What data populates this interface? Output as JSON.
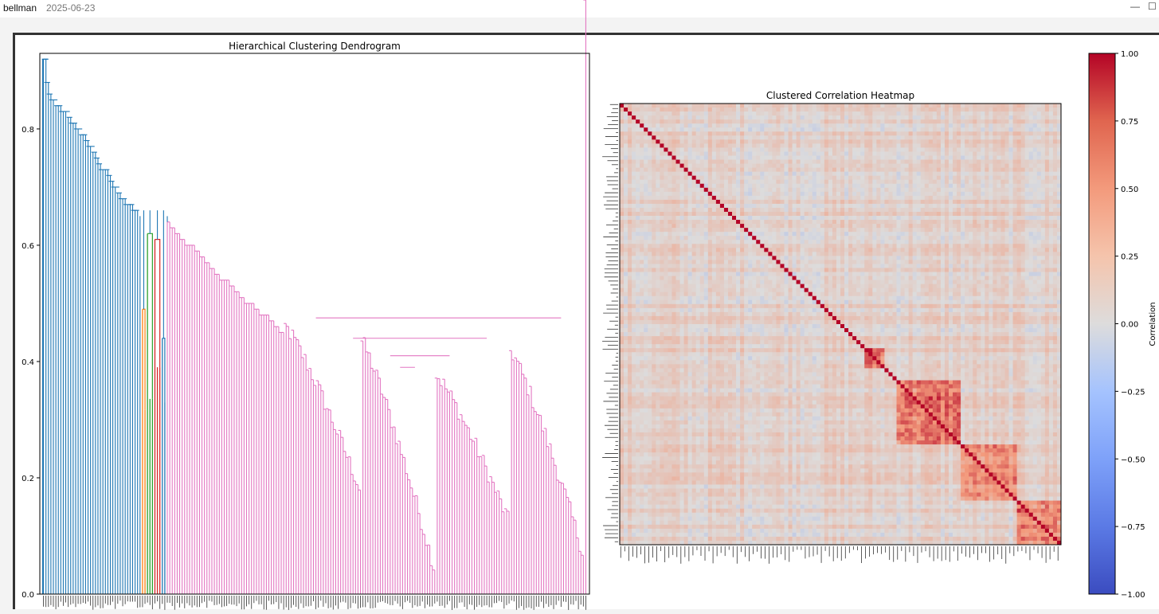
{
  "window": {
    "user": "bellman",
    "date": "2025-06-23",
    "minimize_glyph": "—",
    "maximize_glyph": "☐"
  },
  "chart_data": [
    {
      "type": "dendrogram",
      "title": "Hierarchical Clustering Dendrogram",
      "xlabel": "",
      "ylabel": "",
      "ylim": [
        0,
        0.93
      ],
      "yticks": [
        "0.0",
        "0.2",
        "0.4",
        "0.6",
        "0.8"
      ],
      "ytick_values": [
        0,
        0.2,
        0.4,
        0.6,
        0.8
      ],
      "grid": false,
      "leaf_count": 220,
      "root_height": 0.92,
      "clusters": [
        {
          "color": "#1f77b4",
          "leaves": 40,
          "top_height": 0.86
        },
        {
          "color": "#ff7f0e",
          "leaves": 2,
          "top_height": 0.49
        },
        {
          "color": "#2ca02c",
          "leaves": 3,
          "top_height": 0.62
        },
        {
          "color": "#d62728",
          "leaves": 3,
          "top_height": 0.61
        },
        {
          "color": "#1f77b4",
          "leaves": 2,
          "top_height": 0.44
        },
        {
          "color": "#e377c2",
          "leaves": 170,
          "top_height": 0.65
        }
      ],
      "link_heights_blue": [
        0.92,
        0.88,
        0.86,
        0.85,
        0.84,
        0.84,
        0.83,
        0.83,
        0.82,
        0.81,
        0.81,
        0.8,
        0.79,
        0.79,
        0.78,
        0.77,
        0.76,
        0.75,
        0.74,
        0.73,
        0.73,
        0.72,
        0.71,
        0.7,
        0.69,
        0.68,
        0.68,
        0.67,
        0.67,
        0.66,
        0.66,
        0.65
      ],
      "link_heights_pink_top": [
        0.64,
        0.63,
        0.62,
        0.61,
        0.6,
        0.6,
        0.59,
        0.58,
        0.57,
        0.56,
        0.55,
        0.54,
        0.54,
        0.53,
        0.52,
        0.51,
        0.5,
        0.5,
        0.49,
        0.48,
        0.48,
        0.47,
        0.46,
        0.45
      ],
      "tail_min": 0.04
    },
    {
      "type": "heatmap",
      "title": "Clustered Correlation Heatmap",
      "xlabel": "",
      "ylabel": "",
      "n": 220,
      "colormap": "coolwarm",
      "value_range": [
        -1,
        1
      ],
      "colorbar": {
        "label": "Correlation",
        "ticks": [
          "1.00",
          "0.75",
          "0.50",
          "0.25",
          "0.00",
          "−0.25",
          "−0.50",
          "−0.75",
          "−1.00"
        ],
        "tick_values": [
          1,
          0.75,
          0.5,
          0.25,
          0,
          -0.25,
          -0.5,
          -0.75,
          -1
        ]
      },
      "diagonal_value": 1.0,
      "blocks": [
        {
          "start": 0.62,
          "end": 0.77,
          "mean_corr": 0.55
        },
        {
          "start": 0.77,
          "end": 0.9,
          "mean_corr": 0.4
        },
        {
          "start": 0.9,
          "end": 1.0,
          "mean_corr": 0.5
        },
        {
          "start": 0.55,
          "end": 0.6,
          "mean_corr": 0.6
        }
      ],
      "background_corr": 0.08
    }
  ]
}
